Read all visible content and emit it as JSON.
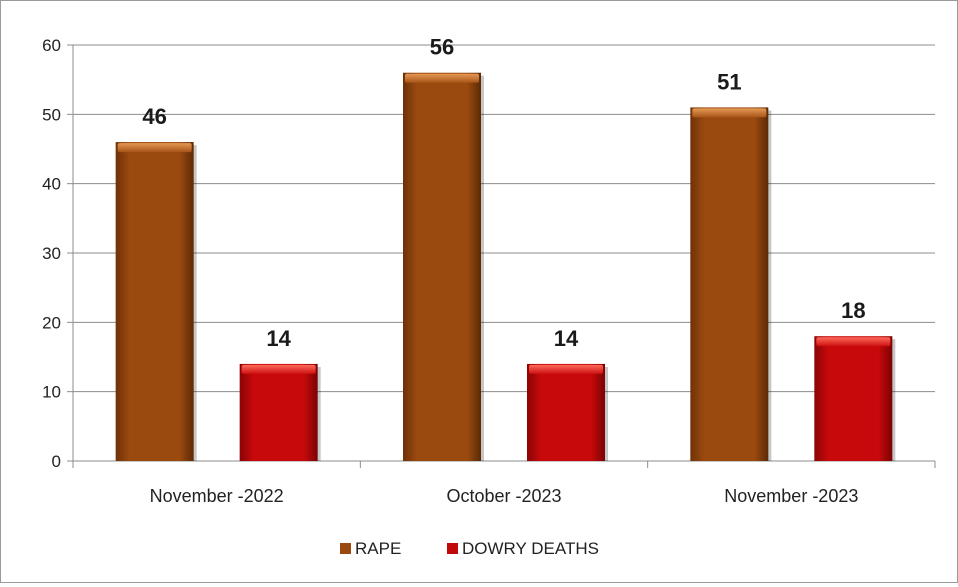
{
  "chart_data": {
    "type": "bar",
    "categories": [
      "November -2022",
      "October -2023",
      "November -2023"
    ],
    "series": [
      {
        "name": "RAPE",
        "values": [
          46,
          56,
          51
        ],
        "color": "#9b4a0f"
      },
      {
        "name": "DOWRY DEATHS",
        "values": [
          14,
          14,
          18
        ],
        "color": "#c0090b"
      }
    ],
    "ylim": [
      0,
      60
    ],
    "yticks": [
      0,
      10,
      20,
      30,
      40,
      50,
      60
    ],
    "grid": true,
    "legend_position": "bottom",
    "data_labels": true
  }
}
